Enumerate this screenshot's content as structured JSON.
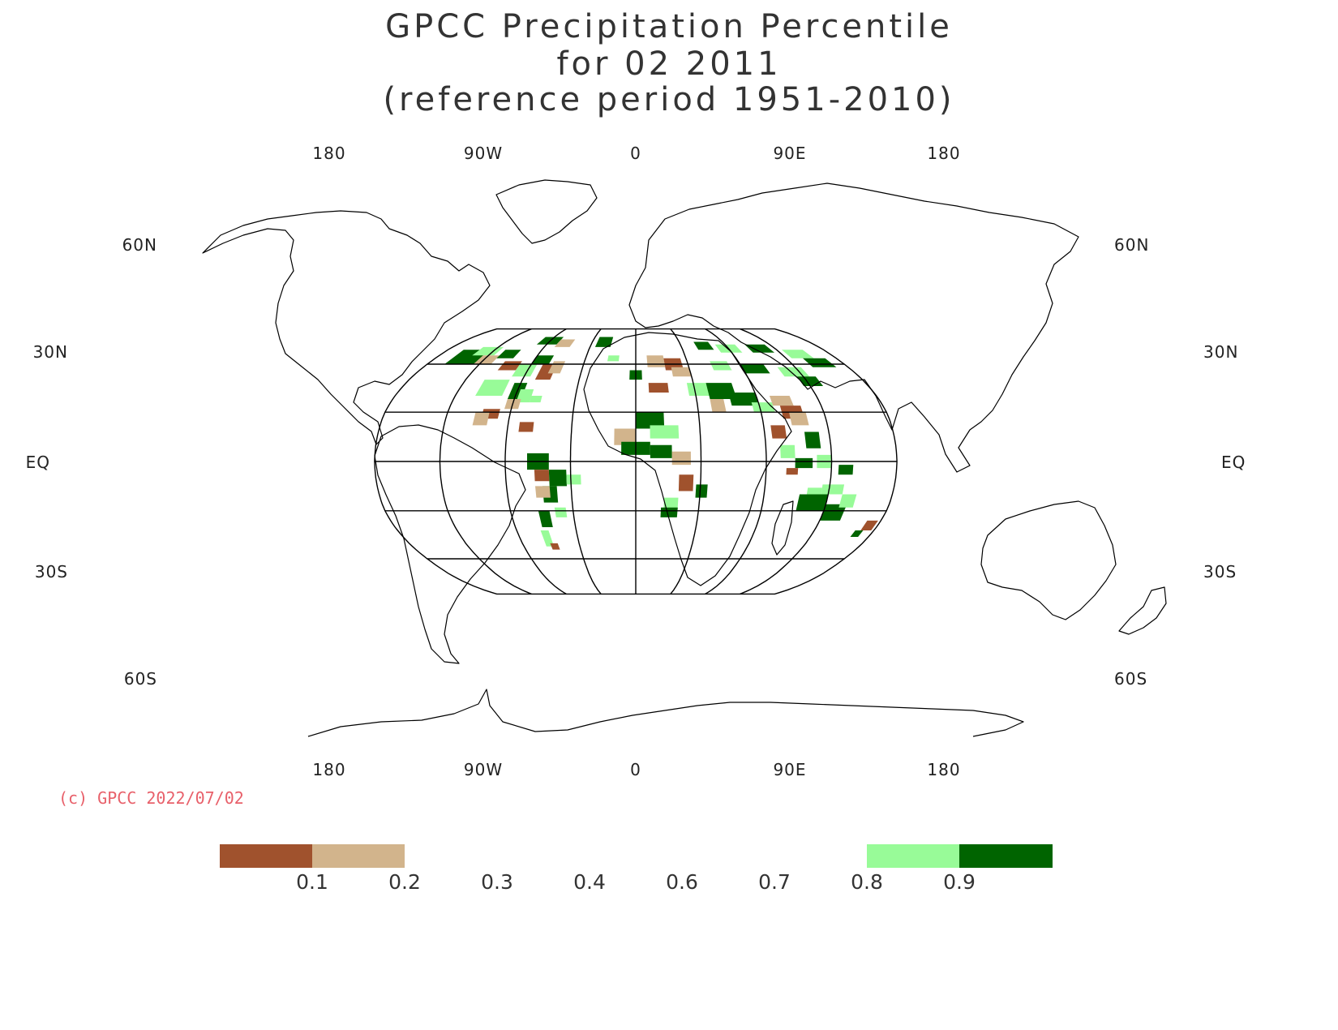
{
  "title": {
    "line1": "GPCC Precipitation Percentile",
    "line2": "for 02 2011",
    "line3": "(reference period 1951-2010)"
  },
  "map": {
    "projection": "robinson",
    "lon_labels_top": [
      "180",
      "90W",
      "0",
      "90E",
      "180"
    ],
    "lon_labels_bottom": [
      "180",
      "90W",
      "0",
      "90E",
      "180"
    ],
    "lat_labels": {
      "n60": "60N",
      "n30": "30N",
      "eq": "EQ",
      "s30": "30S",
      "s60": "60S"
    },
    "colors": {
      "very_dry": "#a0522d",
      "dry": "#d2b48c",
      "wet": "#98fb98",
      "very_wet": "#006400"
    }
  },
  "copyright": "(c) GPCC 2022/07/02",
  "legend": {
    "ticks": [
      "0.1",
      "0.2",
      "0.3",
      "0.4",
      "0.6",
      "0.7",
      "0.8",
      "0.9"
    ],
    "boxes": [
      {
        "name": "very-dry",
        "color": "#a0522d"
      },
      {
        "name": "dry",
        "color": "#d2b48c"
      },
      {
        "name": "wet",
        "color": "#98fb98"
      },
      {
        "name": "very-wet",
        "color": "#006400"
      }
    ]
  }
}
